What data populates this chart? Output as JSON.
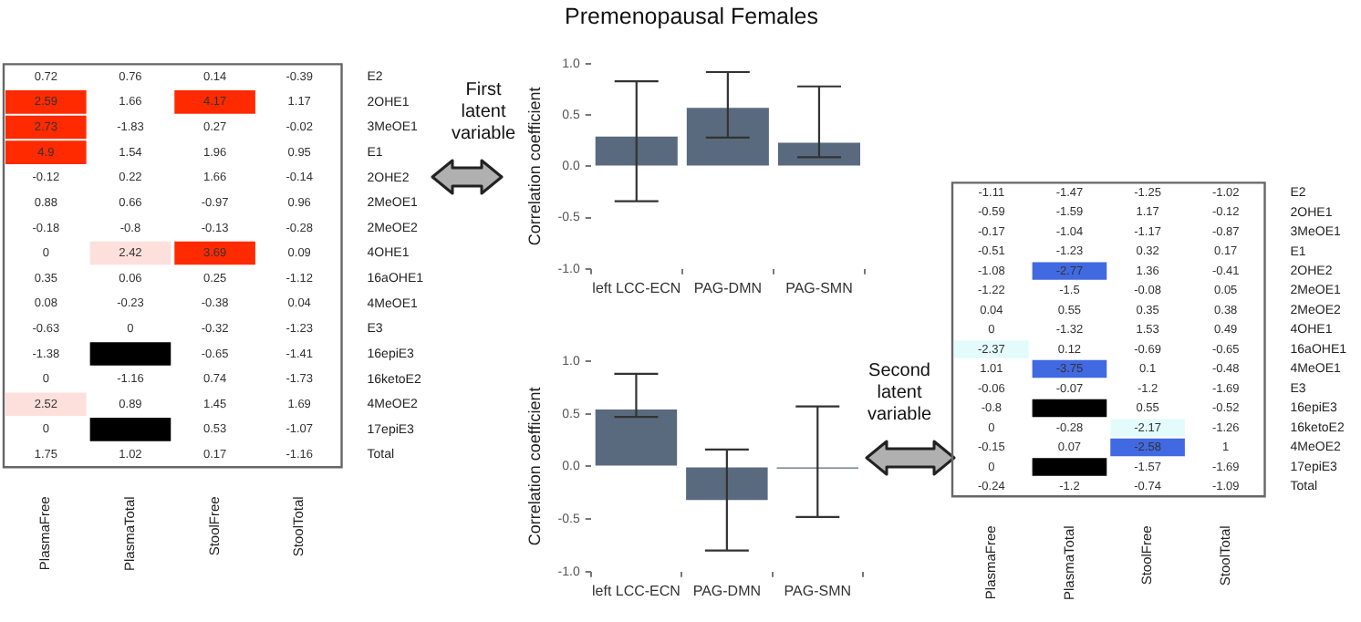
{
  "chart_data": [
    {
      "type": "heatmap",
      "data_labels": true,
      "categories": [
        "PlasmaFree",
        "PlasmaTotal",
        "StoolFree",
        "StoolTotal"
      ],
      "y_categories": [
        "E2",
        "2OHE1",
        "3MeOE1",
        "E1",
        "2OHE2",
        "2MeOE1",
        "2MeOE2",
        "4OHE1",
        "16aOHE1",
        "4MeOE1",
        "E3",
        "16epiE3",
        "16ketoE2",
        "4MeOE2",
        "17epiE3",
        "Total"
      ],
      "cells": [
        [
          0.72,
          0.76,
          0.14,
          -0.39
        ],
        [
          2.59,
          1.66,
          4.17,
          1.17
        ],
        [
          2.73,
          -1.83,
          0.27,
          -0.02
        ],
        [
          4.9,
          1.54,
          1.96,
          0.95
        ],
        [
          -0.12,
          0.22,
          1.66,
          -0.14
        ],
        [
          0.88,
          0.66,
          -0.97,
          0.96
        ],
        [
          -0.18,
          -0.8,
          -0.13,
          -0.28
        ],
        [
          0,
          2.42,
          3.69,
          0.09
        ],
        [
          0.35,
          0.06,
          0.25,
          -1.12
        ],
        [
          0.08,
          -0.23,
          -0.38,
          0.04
        ],
        [
          -0.63,
          0,
          -0.32,
          -1.23
        ],
        [
          -1.38,
          null,
          -0.65,
          -1.41
        ],
        [
          0,
          -1.16,
          0.74,
          -1.73
        ],
        [
          2.52,
          0.89,
          1.45,
          1.69
        ],
        [
          0,
          null,
          0.53,
          -1.07
        ],
        [
          1.75,
          1.02,
          0.17,
          -1.16
        ]
      ]
    },
    {
      "type": "bar",
      "title": "Premenopausal Females",
      "ylabel": "Correlation coefficient",
      "categories": [
        "left LCC-ECN",
        "PAG-DMN",
        "PAG-SMN"
      ],
      "values": [
        0.29,
        0.57,
        0.23
      ],
      "errors": [
        [
          -0.34,
          0.83
        ],
        [
          0.28,
          0.92
        ],
        [
          0.09,
          0.78
        ]
      ],
      "color": "#5a6a7e",
      "ylim": [
        -1,
        1
      ],
      "yticks": [
        {
          "value": -1,
          "label": "-1.0"
        },
        {
          "value": -0.5,
          "label": "-0.5"
        },
        {
          "value": 0,
          "label": "0.0"
        },
        {
          "value": 0.5,
          "label": "0.5"
        },
        {
          "value": 1,
          "label": "1.0"
        }
      ],
      "annotations": [
        "First latent variable"
      ]
    },
    {
      "type": "bar",
      "ylabel": "Correlation coefficient",
      "categories": [
        "left LCC-ECN",
        "PAG-DMN",
        "PAG-SMN"
      ],
      "values": [
        0.54,
        -0.32,
        -0.02
      ],
      "errors": [
        [
          0.47,
          0.88
        ],
        [
          -0.8,
          0.16
        ],
        [
          -0.48,
          0.57
        ]
      ],
      "color": "#5a6a7e",
      "ylim": [
        -1,
        1
      ],
      "yticks": [
        {
          "value": -1,
          "label": "-1.0"
        },
        {
          "value": -0.5,
          "label": "-0.5"
        },
        {
          "value": 0,
          "label": "0.0"
        },
        {
          "value": 0.5,
          "label": "0.5"
        },
        {
          "value": 1,
          "label": "1.0"
        }
      ],
      "annotations": [
        "Second latent variable"
      ]
    },
    {
      "type": "heatmap",
      "data_labels": true,
      "categories": [
        "PlasmaFree",
        "PlasmaTotal",
        "StoolFree",
        "StoolTotal"
      ],
      "y_categories": [
        "E2",
        "2OHE1",
        "3MeOE1",
        "E1",
        "2OHE2",
        "2MeOE1",
        "2MeOE2",
        "4OHE1",
        "16aOHE1",
        "4MeOE1",
        "E3",
        "16epiE3",
        "16ketoE2",
        "4MeOE2",
        "17epiE3",
        "Total"
      ],
      "cells": [
        [
          -1.11,
          -1.47,
          -1.25,
          -1.02
        ],
        [
          -0.59,
          -1.59,
          1.17,
          -0.12
        ],
        [
          -0.17,
          -1.04,
          -1.17,
          -0.87
        ],
        [
          -0.51,
          -1.23,
          0.32,
          0.17
        ],
        [
          -1.08,
          -2.77,
          1.36,
          -0.41
        ],
        [
          -1.22,
          -1.5,
          -0.08,
          0.05
        ],
        [
          0.04,
          0.55,
          0.35,
          0.38
        ],
        [
          0,
          -1.32,
          1.53,
          0.49
        ],
        [
          -2.37,
          0.12,
          -0.69,
          -0.65
        ],
        [
          1.01,
          -3.75,
          0.1,
          -0.48
        ],
        [
          -0.06,
          -0.07,
          -1.2,
          -1.69
        ],
        [
          -0.8,
          null,
          0.55,
          -0.52
        ],
        [
          0,
          -0.28,
          -2.17,
          -1.26
        ],
        [
          -0.15,
          0.07,
          -2.58,
          1
        ],
        [
          0,
          null,
          -1.57,
          -1.69
        ],
        [
          -0.24,
          -1.2,
          -0.74,
          -1.09
        ]
      ]
    }
  ]
}
